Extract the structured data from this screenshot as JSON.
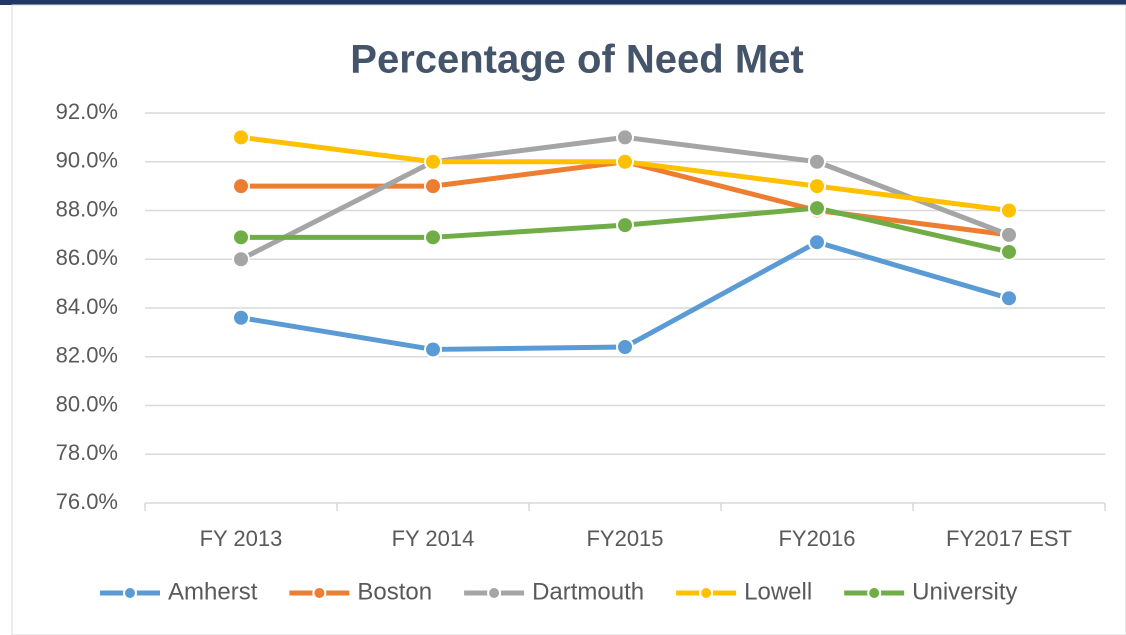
{
  "chart_data": {
    "type": "line",
    "title": "Percentage of Need Met",
    "categories": [
      "FY 2013",
      "FY 2014",
      "FY2015",
      "FY2016",
      "FY2017 EST"
    ],
    "series": [
      {
        "name": "Amherst",
        "color": "#5b9bd5",
        "values": [
          83.6,
          82.3,
          82.4,
          86.7,
          84.4
        ]
      },
      {
        "name": "Boston",
        "color": "#ed7d31",
        "values": [
          89,
          89,
          90,
          88,
          87
        ]
      },
      {
        "name": "Dartmouth",
        "color": "#a5a5a5",
        "values": [
          86,
          90,
          91,
          90,
          87
        ]
      },
      {
        "name": "Lowell",
        "color": "#ffc000",
        "values": [
          91,
          90,
          90,
          89,
          88
        ]
      },
      {
        "name": "University",
        "color": "#70ad47",
        "values": [
          86.9,
          86.9,
          87.4,
          88.1,
          86.3
        ]
      }
    ],
    "ylim": [
      76,
      92
    ],
    "yticks": [
      {
        "value": 76,
        "label": "76.0%"
      },
      {
        "value": 78,
        "label": "78.0%"
      },
      {
        "value": 80,
        "label": "80.0%"
      },
      {
        "value": 82,
        "label": "82.0%"
      },
      {
        "value": 84,
        "label": "84.0%"
      },
      {
        "value": 86,
        "label": "86.0%"
      },
      {
        "value": 88,
        "label": "88.0%"
      },
      {
        "value": 90,
        "label": "90.0%"
      },
      {
        "value": 92,
        "label": "92.0%"
      }
    ],
    "grid": true,
    "legend": "bottom"
  }
}
